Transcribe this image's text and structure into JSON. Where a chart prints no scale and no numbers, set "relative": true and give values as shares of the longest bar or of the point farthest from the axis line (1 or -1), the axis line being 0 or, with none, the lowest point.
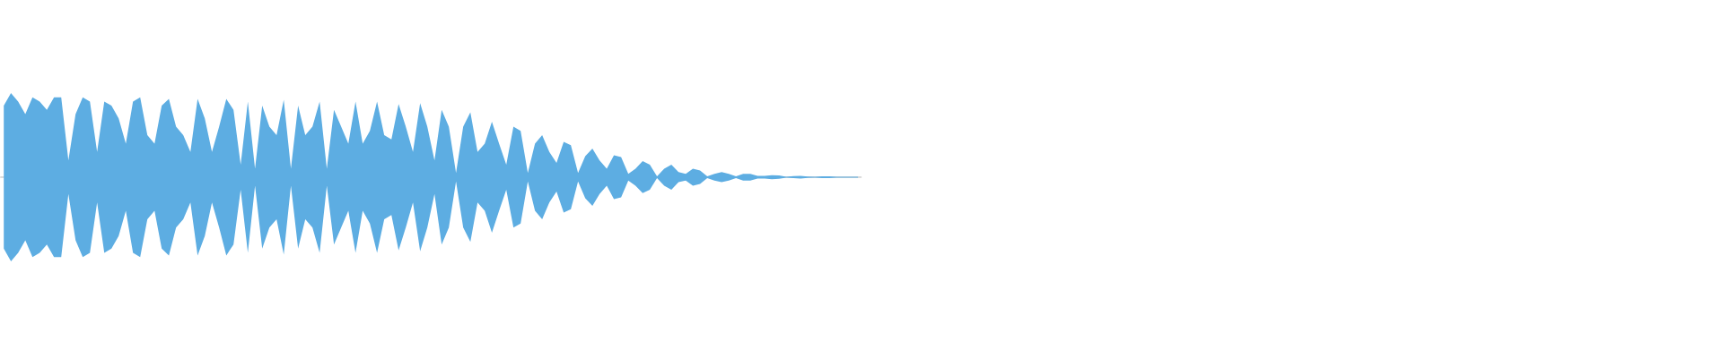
{
  "chart_data": {
    "type": "area",
    "relative": true,
    "categories": [
      null,
      null,
      null,
      null,
      null,
      null,
      null,
      null,
      null,
      null,
      null,
      null,
      null,
      null,
      null,
      null,
      null,
      null,
      null,
      null,
      null,
      null,
      null,
      null,
      null,
      null,
      null,
      null,
      null,
      null,
      null,
      null,
      null,
      null,
      null,
      null,
      null,
      null,
      null,
      null,
      null,
      null,
      null,
      null,
      null,
      null,
      null,
      null,
      null,
      null,
      null,
      null,
      null,
      null,
      null,
      null,
      null,
      null,
      null,
      null,
      null,
      null,
      null,
      null,
      null,
      null,
      null,
      null,
      null,
      null,
      null,
      null,
      null,
      null,
      null,
      null,
      null,
      null,
      null,
      null,
      null,
      null,
      null,
      null,
      null,
      null,
      null,
      null,
      null,
      null,
      null,
      null,
      null,
      null,
      null,
      null,
      null,
      null,
      null,
      null,
      null,
      null,
      null,
      null,
      null,
      null,
      null,
      null,
      null,
      null,
      null,
      null,
      null,
      null,
      null,
      null,
      null,
      null,
      null,
      null
    ],
    "series": [
      {
        "color": "#5dade2",
        "values": [
          0.85,
          1,
          0.9,
          0.75,
          0.95,
          0.9,
          0.8,
          0.95,
          0.95,
          0.2,
          0.75,
          0.95,
          0.9,
          0.3,
          0.9,
          0.85,
          0.7,
          0.4,
          0.9,
          0.95,
          0.5,
          0.4,
          0.85,
          0.93,
          0.6,
          0.5,
          0.3,
          0.93,
          0.7,
          0.3,
          0.6,
          0.93,
          0.8,
          0.15,
          0.9,
          0.1,
          0.85,
          0.6,
          0.5,
          0.92,
          0.1,
          0.85,
          0.5,
          0.6,
          0.9,
          0.1,
          0.8,
          0.6,
          0.4,
          0.9,
          0.4,
          0.55,
          0.9,
          0.5,
          0.45,
          0.87,
          0.6,
          0.3,
          0.88,
          0.6,
          0.2,
          0.8,
          0.6,
          0.05,
          0.6,
          0.77,
          0.3,
          0.4,
          0.66,
          0.4,
          0.15,
          0.6,
          0.55,
          0.05,
          0.4,
          0.5,
          0.3,
          0.17,
          0.42,
          0.38,
          0.05,
          0.25,
          0.34,
          0.2,
          0.1,
          0.26,
          0.24,
          0.04,
          0.1,
          0.19,
          0.15,
          0.01,
          0.1,
          0.15,
          0.06,
          0.04,
          0.1,
          0.08,
          0.01,
          0.04,
          0.06,
          0.04,
          0.01,
          0.04,
          0.04,
          0.015,
          0.015,
          0.025,
          0.02,
          0.005,
          0.012,
          0.015,
          0.008,
          0.006,
          0.01,
          0.01,
          0.005,
          null,
          0.005,
          0.005
        ]
      },
      {
        "color": "#5dade2",
        "values": [
          -0.85,
          -1,
          -0.9,
          -0.75,
          -0.95,
          -0.9,
          -0.8,
          -0.95,
          -0.95,
          -0.2,
          -0.75,
          -0.95,
          -0.9,
          -0.3,
          -0.9,
          -0.85,
          -0.7,
          -0.4,
          -0.9,
          -0.95,
          -0.5,
          -0.4,
          -0.85,
          -0.93,
          -0.6,
          -0.5,
          -0.3,
          -0.93,
          -0.7,
          -0.3,
          -0.6,
          -0.93,
          -0.8,
          -0.15,
          -0.9,
          -0.1,
          -0.85,
          -0.6,
          -0.5,
          -0.92,
          -0.1,
          -0.85,
          -0.5,
          -0.6,
          -0.9,
          -0.1,
          -0.8,
          -0.6,
          -0.4,
          -0.9,
          -0.4,
          -0.55,
          -0.9,
          -0.5,
          -0.45,
          -0.87,
          -0.6,
          -0.3,
          -0.88,
          -0.6,
          -0.2,
          -0.8,
          -0.6,
          -0.05,
          -0.6,
          -0.77,
          -0.3,
          -0.4,
          -0.66,
          -0.4,
          -0.15,
          -0.6,
          -0.55,
          -0.05,
          -0.4,
          -0.5,
          -0.3,
          -0.17,
          -0.42,
          -0.38,
          -0.05,
          -0.25,
          -0.34,
          -0.2,
          -0.1,
          -0.26,
          -0.24,
          -0.04,
          -0.1,
          -0.19,
          -0.15,
          -0.01,
          -0.1,
          -0.15,
          -0.06,
          -0.04,
          -0.1,
          -0.08,
          -0.01,
          -0.04,
          -0.06,
          -0.04,
          -0.01,
          -0.04,
          -0.04,
          -0.015,
          -0.015,
          -0.025,
          -0.02,
          -0.005,
          -0.012,
          -0.015,
          -0.008,
          -0.006,
          -0.01,
          -0.01,
          -0.005,
          null,
          -0.005,
          -0.005
        ]
      }
    ]
  }
}
